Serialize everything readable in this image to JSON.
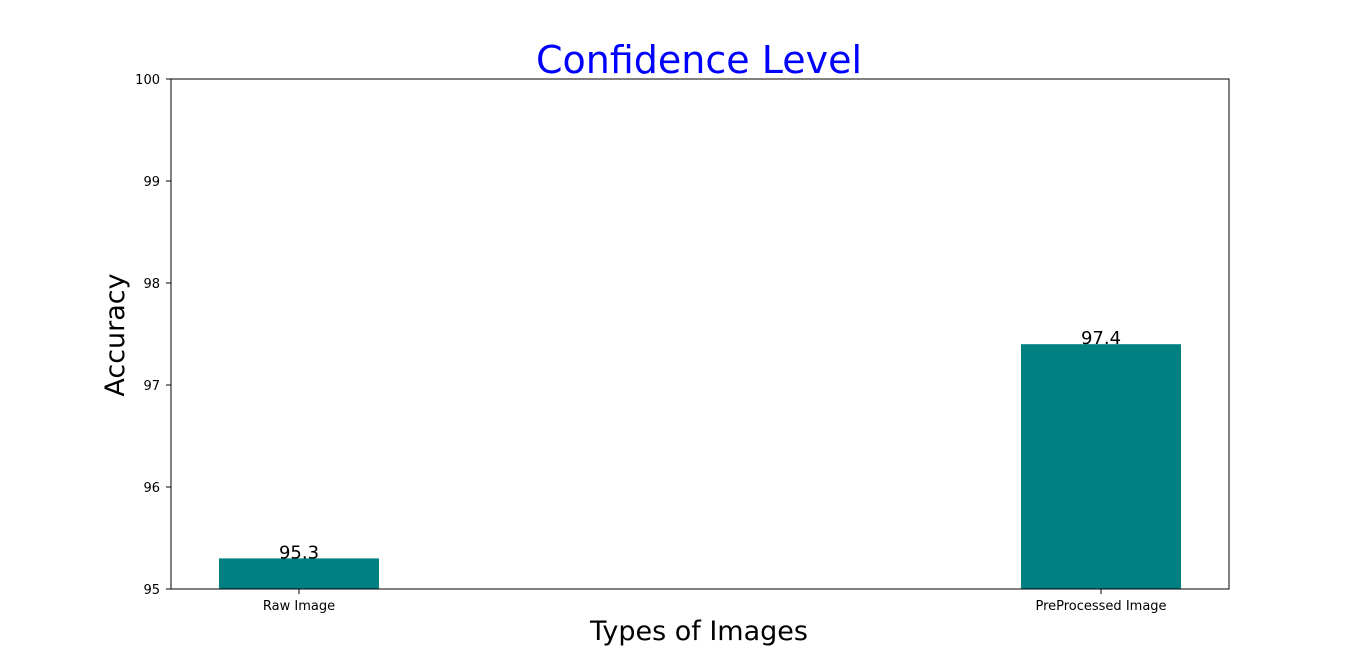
{
  "chart_data": {
    "type": "bar",
    "title": "Confidence Level",
    "xlabel": "Types of Images",
    "ylabel": "Accuracy",
    "categories": [
      "Raw Image",
      "PreProcessed Image"
    ],
    "values": [
      95.3,
      97.4
    ],
    "data_labels": [
      "95.3",
      "97.4"
    ],
    "ylim": [
      95,
      100
    ],
    "yticks": [
      95,
      96,
      97,
      98,
      99,
      100
    ],
    "ytick_labels": [
      "95",
      "96",
      "97",
      "98",
      "99",
      "100"
    ],
    "grid": false,
    "legend": "none",
    "colors": {
      "bar": "#008080",
      "title": "#0000ff",
      "axes": "#000000"
    }
  }
}
